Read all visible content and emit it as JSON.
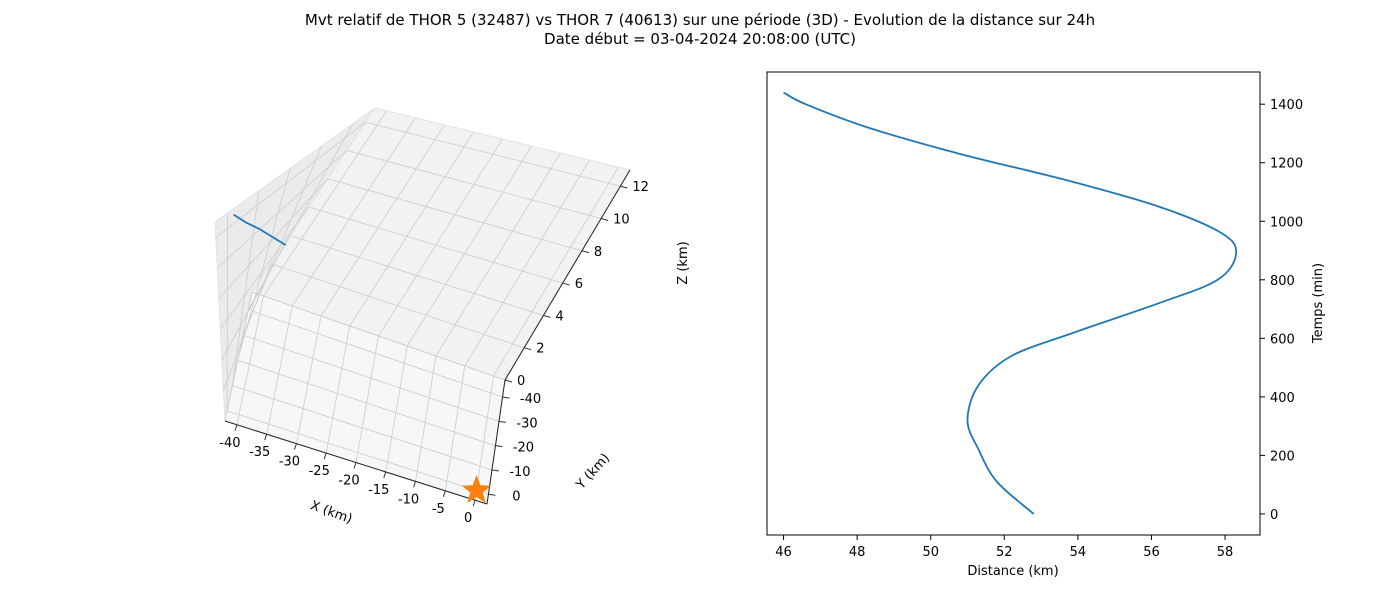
{
  "figure": {
    "title_line1": "Mvt relatif de THOR 5 (32487) vs THOR 7 (40613) sur une période (3D) - Evolution de la distance sur 24h",
    "title_line2": "Date début = 03-04-2024 20:08:00 (UTC)"
  },
  "colors": {
    "series": "#1f77b4",
    "marker": "#ff7f0e",
    "pane_side": "#ebebeb",
    "pane_back": "#f2f2f2",
    "pane_floor": "#f7f7f7",
    "grid": "#cfcfcf"
  },
  "chart_data": [
    {
      "type": "line",
      "projection": "3d",
      "xlabel": "X (km)",
      "ylabel": "Y (km)",
      "zlabel": "Z (km)",
      "xlim": [
        -42,
        2
      ],
      "ylim": [
        -47,
        4
      ],
      "zlim": [
        0,
        13
      ],
      "x_ticks": [
        -40,
        -35,
        -30,
        -25,
        -20,
        -15,
        -10,
        -5,
        0
      ],
      "y_ticks": [
        0,
        -10,
        -20,
        -30,
        -40
      ],
      "z_ticks": [
        0,
        2,
        4,
        6,
        8,
        10,
        12
      ],
      "grid": true,
      "series": [
        {
          "x": [
            -42,
            -40,
            -38,
            -36,
            -34
          ],
          "y": [
            -2,
            -2,
            -2.5,
            -3,
            -3.5
          ],
          "z": [
            12.6,
            12.3,
            12.0,
            11.6,
            11.2
          ]
        }
      ],
      "marker_point": {
        "x": 0,
        "y": 0,
        "z": 0,
        "symbol": "star"
      }
    },
    {
      "type": "line",
      "xlabel": "Distance (km)",
      "ylabel": "Temps (min)",
      "xlim": [
        45.55,
        58.95
      ],
      "ylim": [
        -72,
        1510
      ],
      "x_ticks": [
        46,
        48,
        50,
        52,
        54,
        56,
        58
      ],
      "y_ticks": [
        0,
        200,
        400,
        600,
        800,
        1000,
        1200,
        1400
      ],
      "y_axis_position": "right",
      "grid": false,
      "series": [
        {
          "x": [
            52.8,
            51.8,
            51.3,
            51.0,
            51.3,
            52.2,
            53.9,
            56.2,
            57.8,
            58.3,
            57.9,
            56.2,
            53.7,
            50.8,
            48.3,
            46.6,
            46.0
          ],
          "y": [
            0,
            110,
            220,
            320,
            440,
            540,
            620,
            720,
            800,
            890,
            960,
            1050,
            1140,
            1230,
            1320,
            1400,
            1440
          ]
        }
      ]
    }
  ]
}
